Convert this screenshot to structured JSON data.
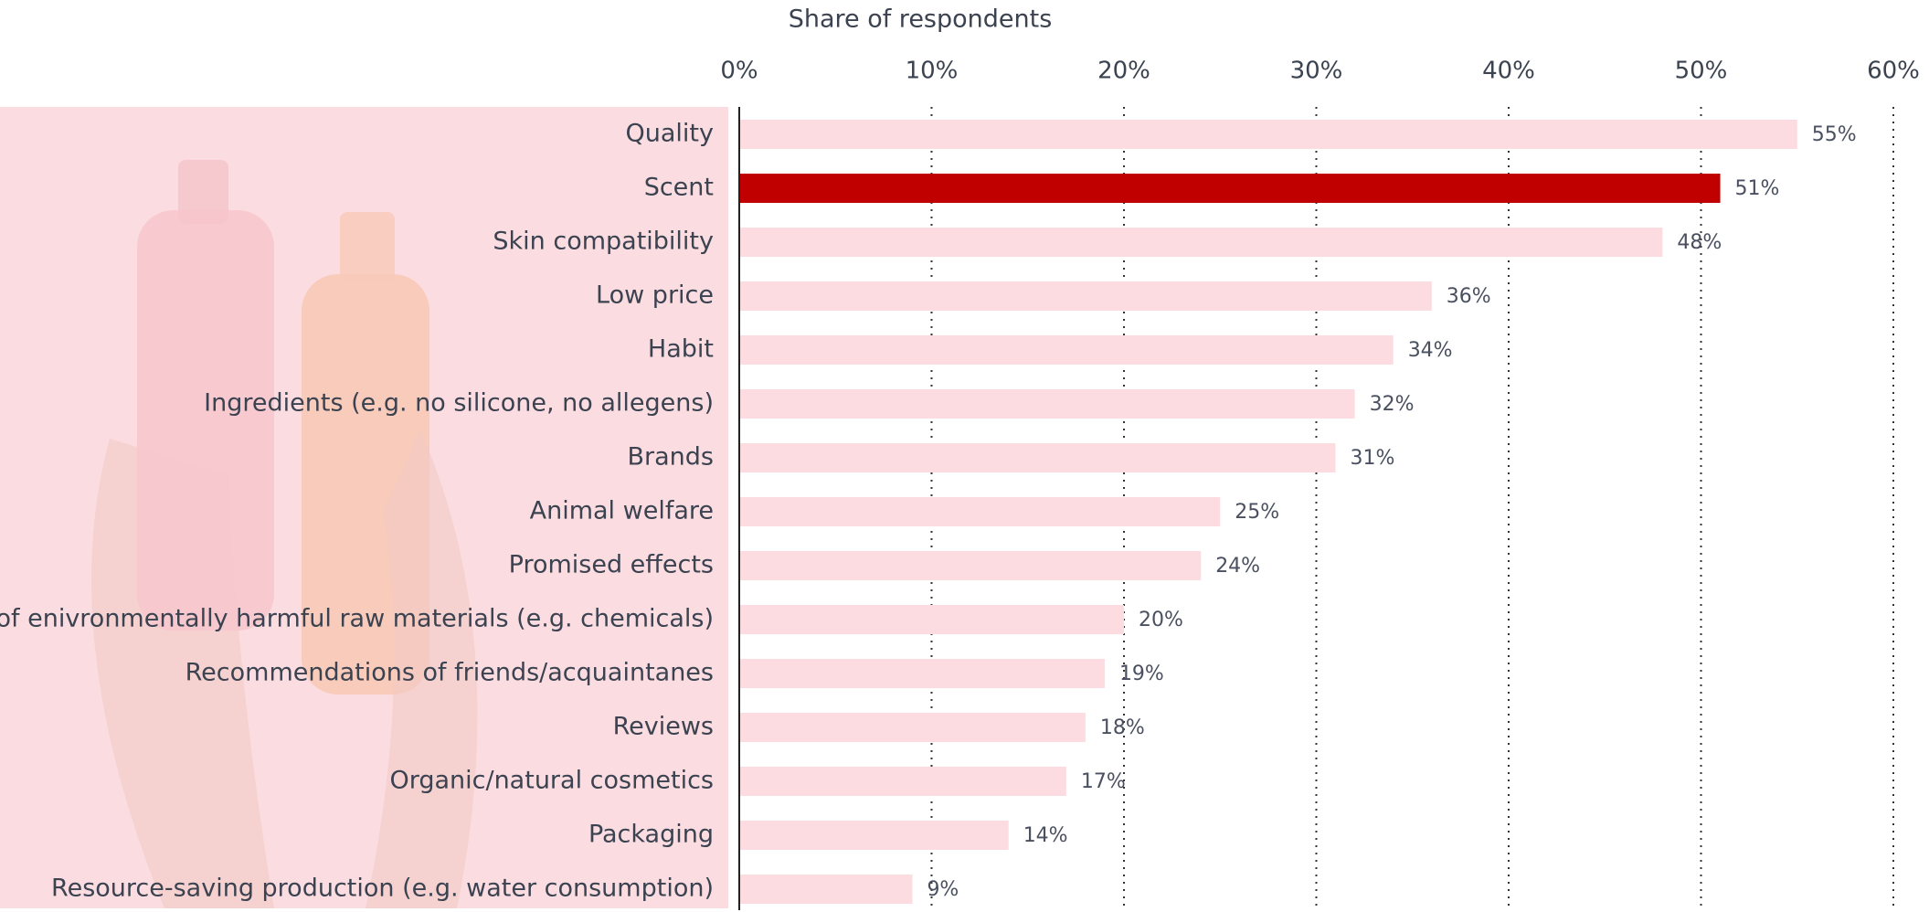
{
  "chart_data": {
    "type": "bar",
    "orientation": "horizontal",
    "x_label": "Share of respondents",
    "categories": [
      "Quality",
      "Scent",
      "Skin compatibility",
      "Low price",
      "Habit",
      "Ingredients (e.g. no silicone, no allegens)",
      "Brands",
      "Animal welfare",
      "Promised effects",
      "No use of enivronmentally harmful raw materials (e.g. chemicals)",
      "Recommendations of friends/acquaintanes",
      "Reviews",
      "Organic/natural cosmetics",
      "Packaging",
      "Resource-saving production (e.g. water consumption)"
    ],
    "values": [
      55,
      51,
      48,
      36,
      34,
      32,
      31,
      25,
      24,
      20,
      19,
      18,
      17,
      14,
      9
    ],
    "value_labels": [
      "55%",
      "51%",
      "48%",
      "36%",
      "34%",
      "32%",
      "31%",
      "25%",
      "24%",
      "20%",
      "19%",
      "18%",
      "17%",
      "14%",
      "9%"
    ],
    "colors": [
      "#fcdce1",
      "#c00000",
      "#fcdce1",
      "#fcdce1",
      "#fcdce1",
      "#fcdce1",
      "#fcdce1",
      "#fcdce1",
      "#fcdce1",
      "#fcdce1",
      "#fcdce1",
      "#fcdce1",
      "#fcdce1",
      "#fcdce1",
      "#fcdce1"
    ],
    "xlim": [
      0,
      60
    ],
    "xticks": [
      {
        "value": 0,
        "label": "0%"
      },
      {
        "value": 10,
        "label": "10%"
      },
      {
        "value": 20,
        "label": "20%"
      },
      {
        "value": 30,
        "label": "30%"
      },
      {
        "value": 40,
        "label": "40%"
      },
      {
        "value": 50,
        "label": "50%"
      },
      {
        "value": 60,
        "label": "60%"
      }
    ],
    "grid": true
  }
}
